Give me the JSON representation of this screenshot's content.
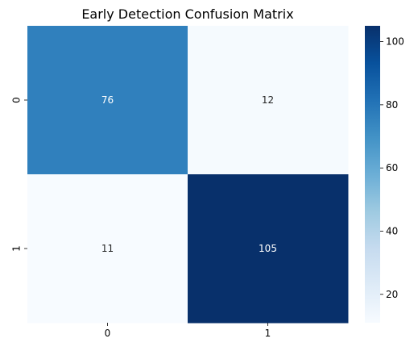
{
  "chart_data": {
    "type": "heatmap",
    "title": "Early Detection Confusion Matrix",
    "xlabel": "",
    "ylabel": "",
    "x_categories": [
      "0",
      "1"
    ],
    "y_categories": [
      "0",
      "1"
    ],
    "values": [
      [
        76,
        12
      ],
      [
        11,
        105
      ]
    ],
    "colormap": "Blues",
    "vmin": 11,
    "vmax": 105,
    "colorbar_ticks": [
      20,
      40,
      60,
      80,
      100
    ],
    "annotations": true,
    "grid": false
  }
}
